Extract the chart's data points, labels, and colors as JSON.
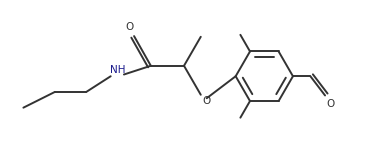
{
  "background_color": "#ffffff",
  "line_color": "#333333",
  "nh_color": "#1a1a8c",
  "o_color": "#333333",
  "line_width": 1.4,
  "font_size": 7.5,
  "figsize": [
    3.68,
    1.49
  ],
  "dpi": 100,
  "xlim": [
    0,
    10.5
  ],
  "ylim": [
    0,
    4.2
  ]
}
